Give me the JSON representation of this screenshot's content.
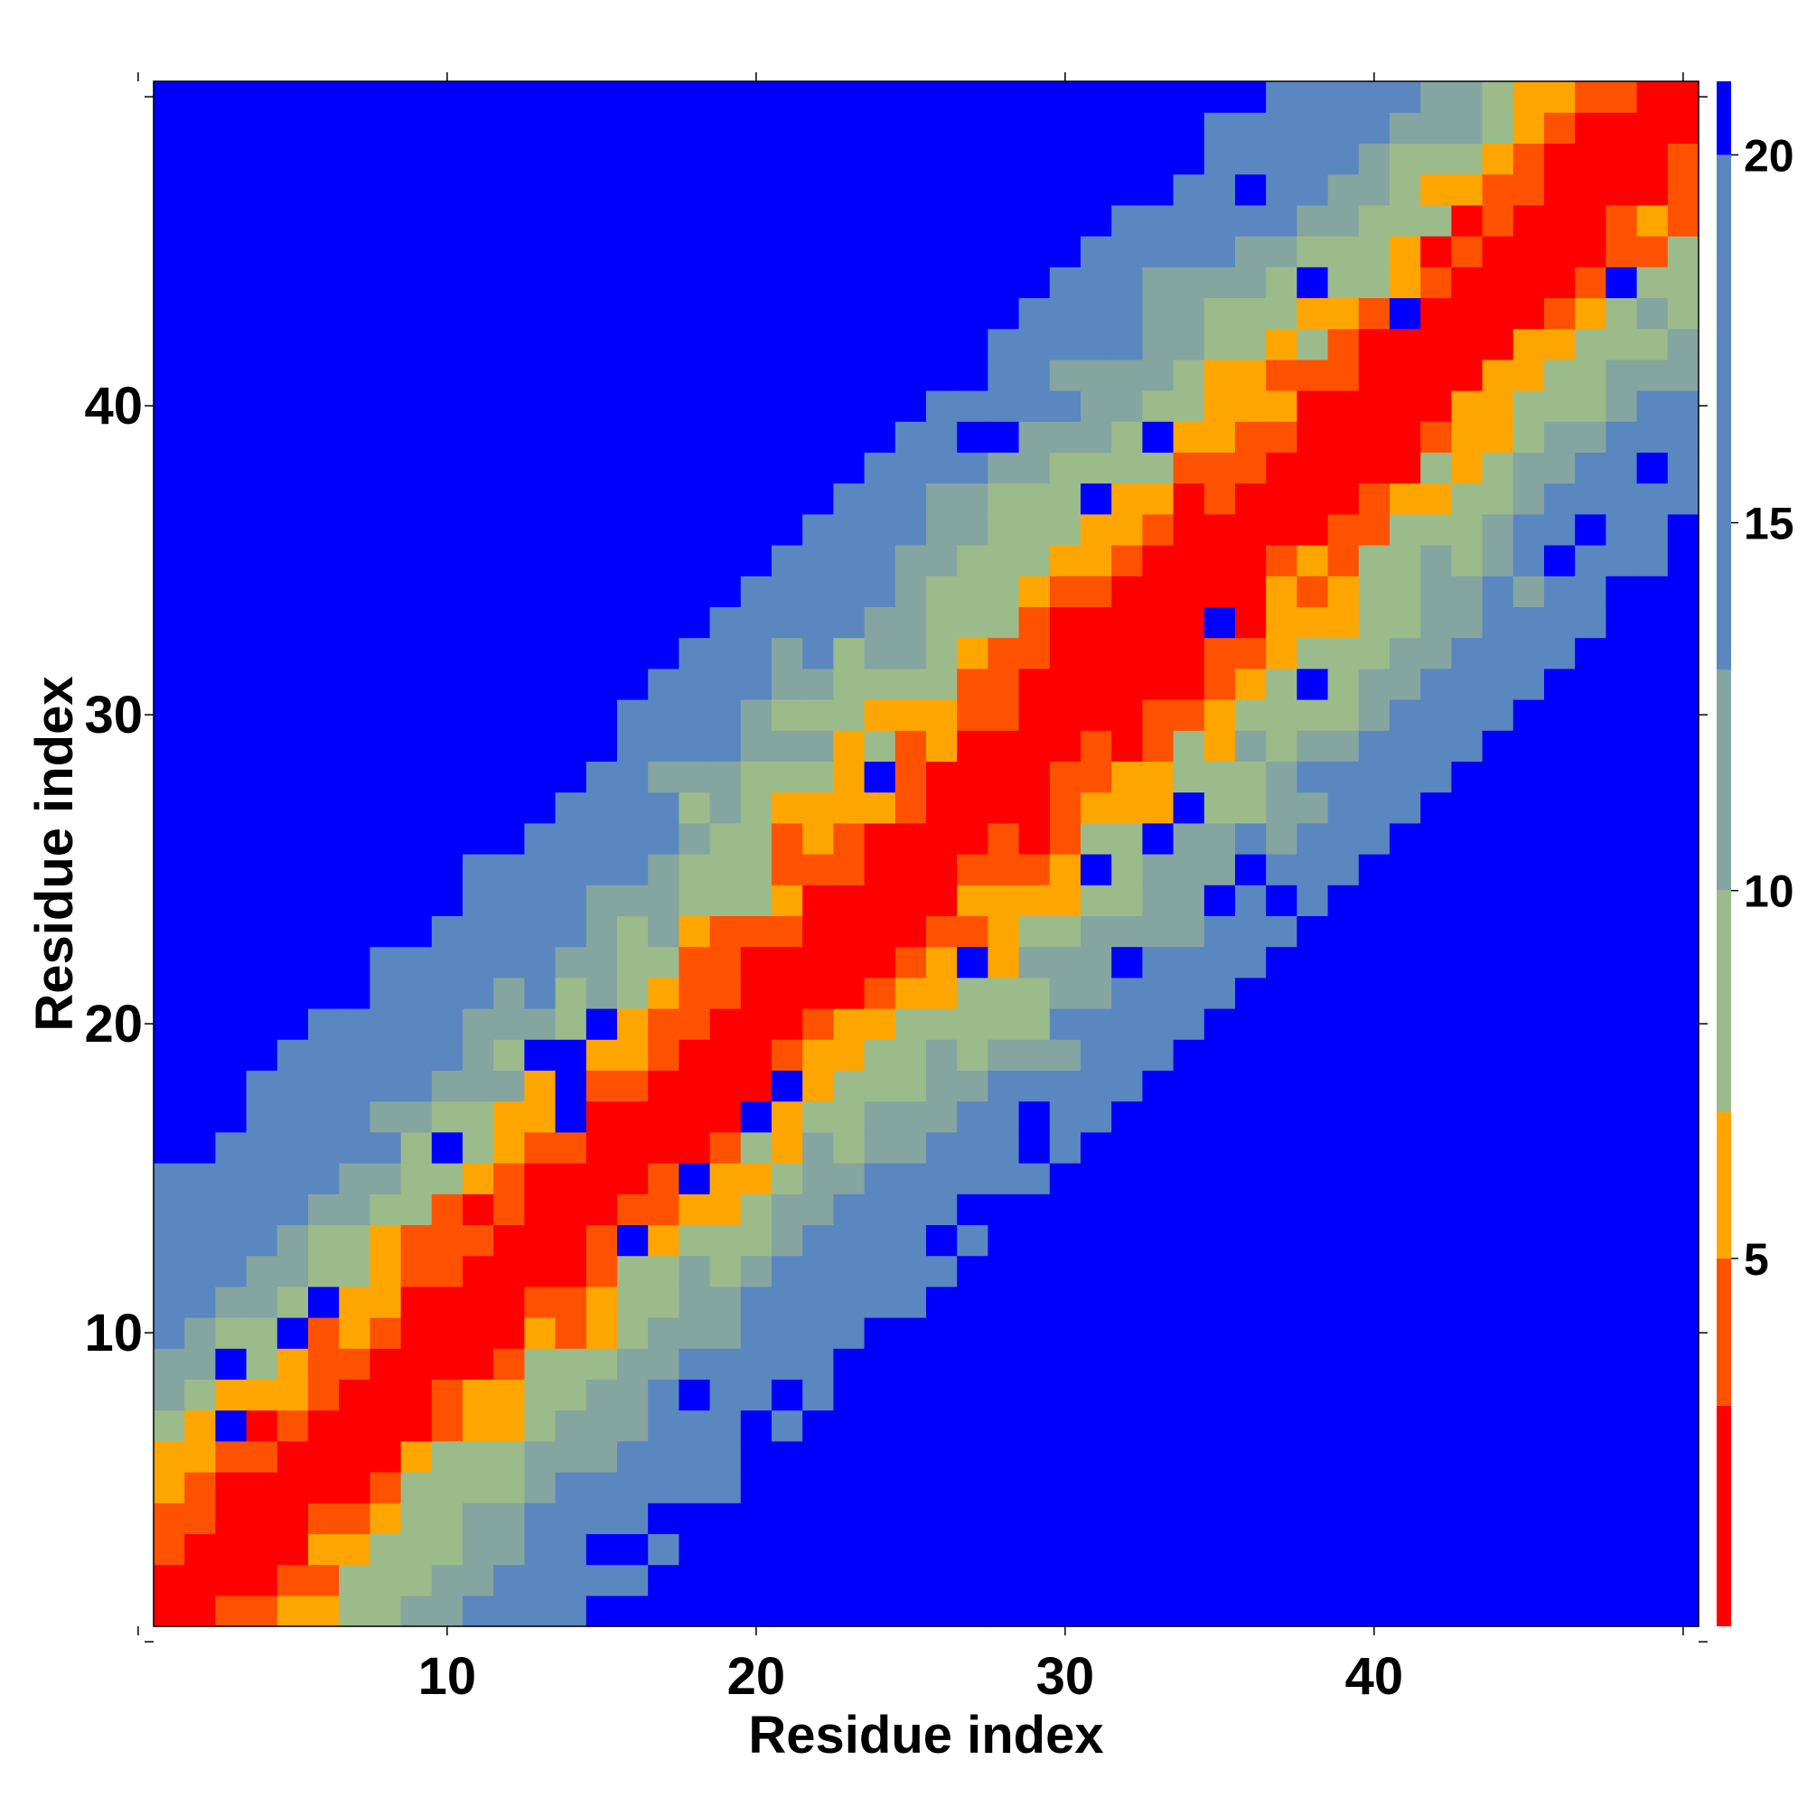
{
  "chart_data": {
    "type": "heatmap",
    "title": "",
    "xlabel": "Residue index",
    "ylabel": "Residue index",
    "xlim": [
      0.5,
      50.5
    ],
    "ylim": [
      0.5,
      50.5
    ],
    "xticks": [
      10,
      20,
      30,
      40
    ],
    "yticks": [
      10,
      20,
      30,
      40
    ],
    "grid": false,
    "value_description": "pairwise distance map between residues; cell value at (i, j) approximated by |i - j| plus local fluctuations, capped at the colorbar max",
    "colorbar": {
      "location": "right",
      "ticks": [
        5,
        10,
        15,
        20
      ],
      "range": [
        0,
        21
      ],
      "bands": [
        {
          "max": 3,
          "color": "#ff0000"
        },
        {
          "max": 5,
          "color": "#ff5200"
        },
        {
          "max": 7,
          "color": "#ffa500"
        },
        {
          "max": 10,
          "color": "#9bbb8b"
        },
        {
          "max": 13,
          "color": "#85a5a0"
        },
        {
          "max": 20,
          "color": "#5a87c0"
        },
        {
          "max": 21,
          "color": "#0000ff"
        }
      ]
    },
    "n_residues": 50,
    "band_halfwidth_near_diagonal": 8,
    "background_color": "#0000ff"
  }
}
